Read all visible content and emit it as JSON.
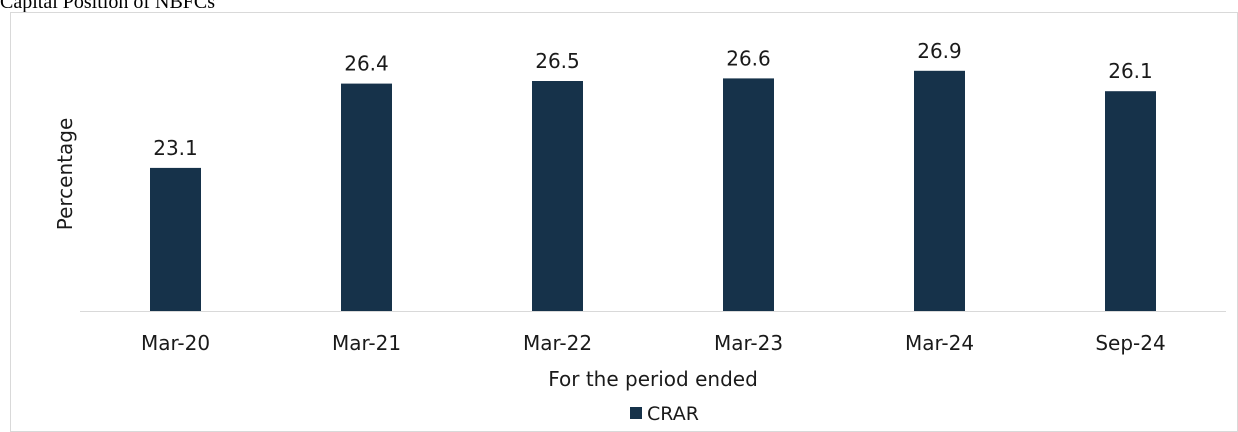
{
  "figure_title": "Capital Position of NBFCs",
  "colors": {
    "bar": "#16324a",
    "axis_line": "#d9d9d9",
    "frame_border": "#d9d9d9"
  },
  "chart_data": {
    "type": "bar",
    "title": "",
    "xlabel": "For the period ended",
    "ylabel": "Percentage",
    "categories": [
      "Mar-20",
      "Mar-21",
      "Mar-22",
      "Mar-23",
      "Mar-24",
      "Sep-24"
    ],
    "series": [
      {
        "name": "CRAR",
        "values": [
          23.1,
          26.4,
          26.5,
          26.6,
          26.9,
          26.1
        ]
      }
    ],
    "ylim": [
      17.5,
      28.3
    ],
    "grid": false,
    "data_labels": true,
    "legend_position": "bottom"
  }
}
